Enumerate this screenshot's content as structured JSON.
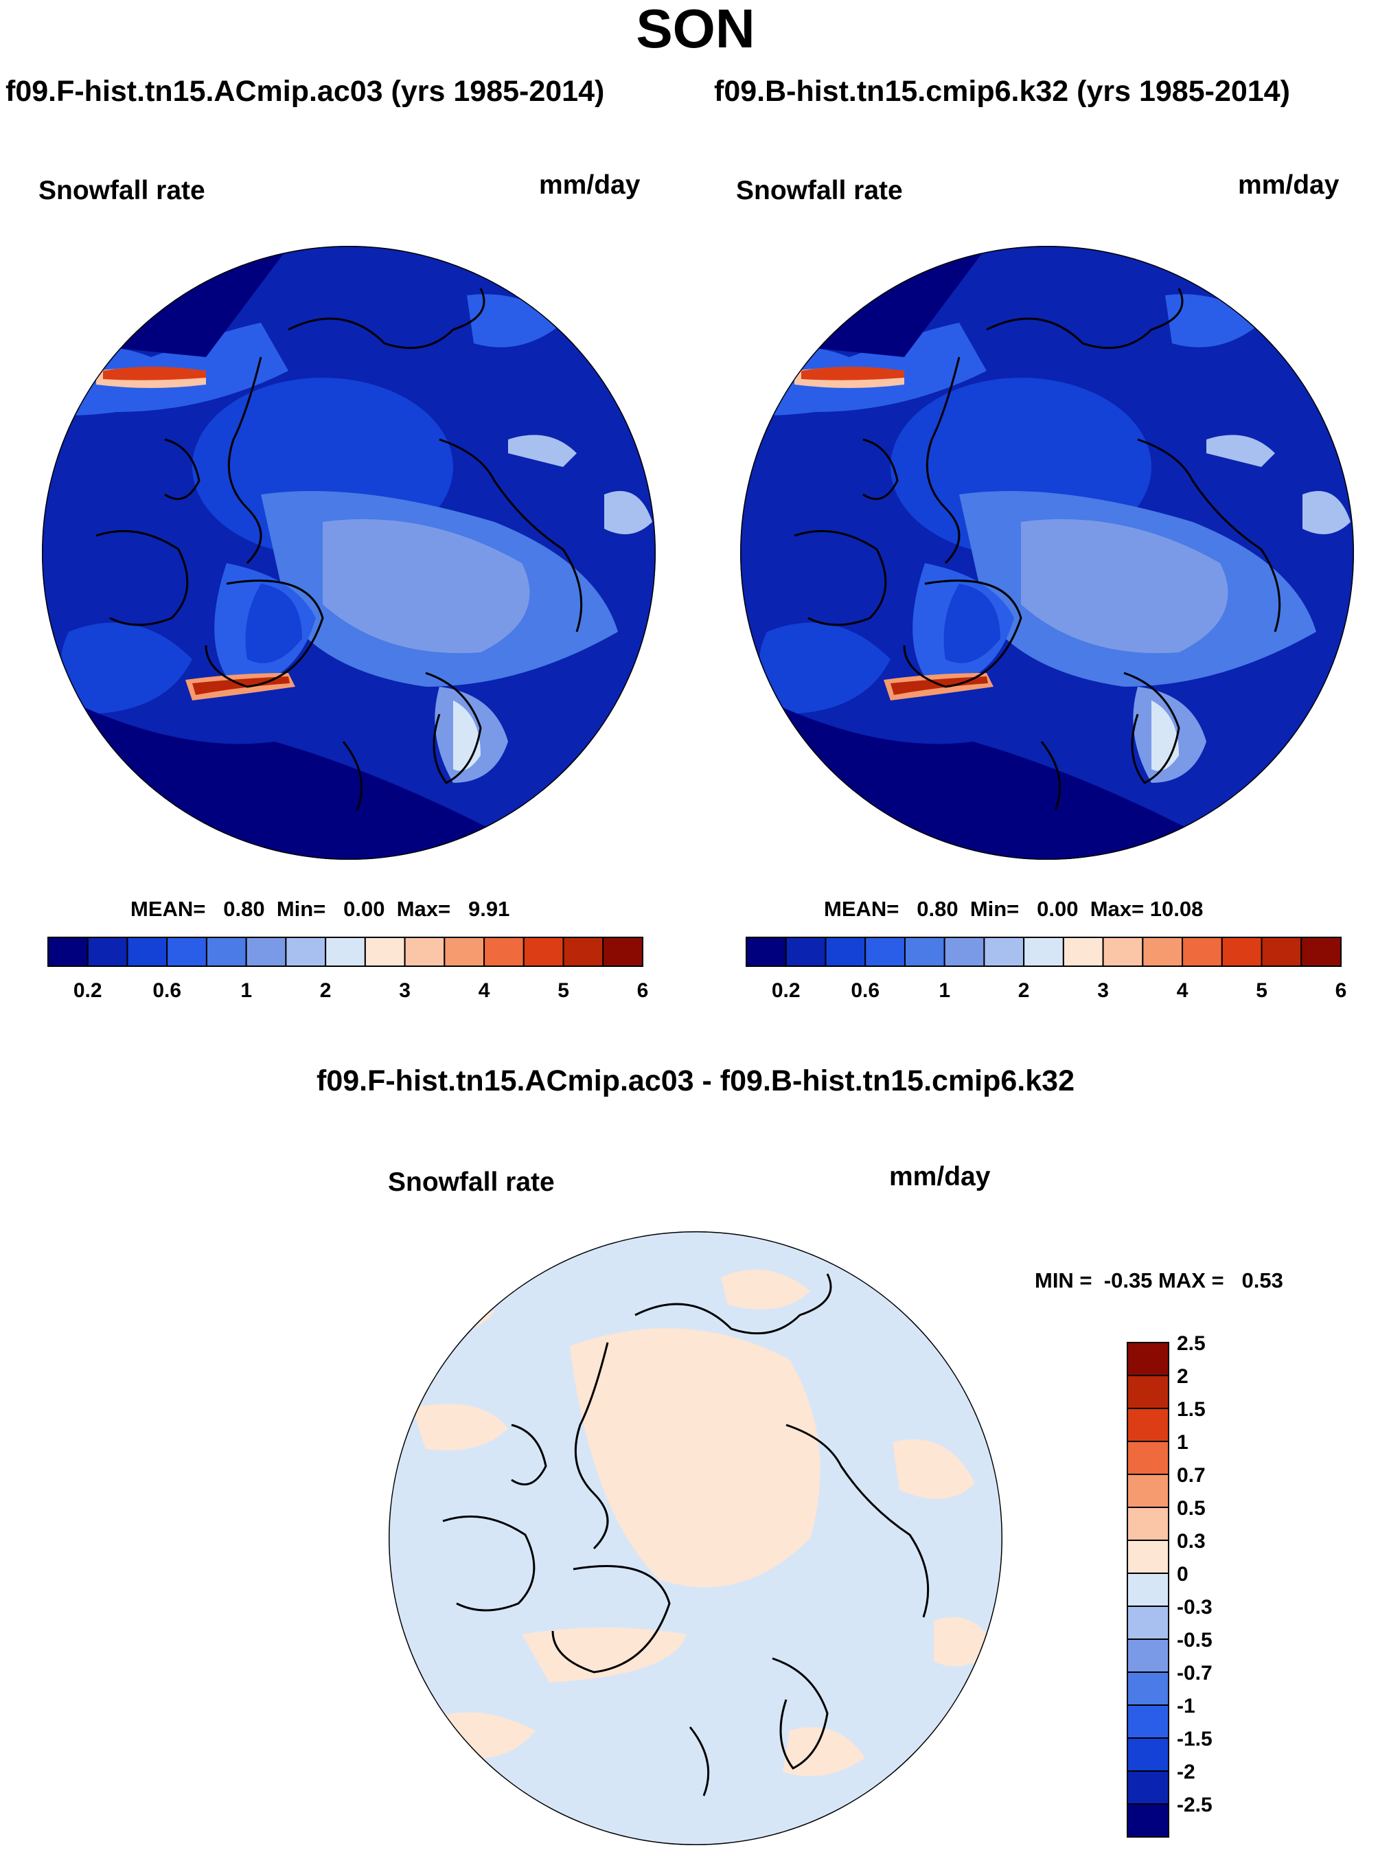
{
  "title": "SON",
  "panels": [
    {
      "case": "f09.F-hist.tn15.ACmip.ac03 (yrs 1985-2014)",
      "variable": "Snowfall rate",
      "units": "mm/day",
      "stats": {
        "mean_label": "MEAN=",
        "mean": "0.80",
        "min_label": "Min=",
        "min": "0.00",
        "max_label": "Max=",
        "max": "9.91"
      }
    },
    {
      "case": "f09.B-hist.tn15.cmip6.k32 (yrs 1985-2014)",
      "variable": "Snowfall rate",
      "units": "mm/day",
      "stats": {
        "mean_label": "MEAN=",
        "mean": "0.80",
        "min_label": "Min=",
        "min": "0.00",
        "max_label": "Max=",
        "max": "10.08"
      }
    }
  ],
  "difference": {
    "title": "f09.F-hist.tn15.ACmip.ac03 - f09.B-hist.tn15.cmip6.k32",
    "variable": "Snowfall rate",
    "units": "mm/day",
    "minmax": "MIN =  -0.35 MAX =   0.53"
  },
  "colorbar_abs": {
    "colors": [
      "#00007f",
      "#0a23b0",
      "#1441d6",
      "#2a5ee8",
      "#4a7be6",
      "#7a9ae8",
      "#a8c0f0",
      "#d7e6f7",
      "#fde6d4",
      "#fbc5a8",
      "#f69b70",
      "#ef6a3c",
      "#dd3d14",
      "#b92708",
      "#8a0a02"
    ],
    "labels": [
      "0.2",
      "0.6",
      "1",
      "2",
      "3",
      "4",
      "5",
      "6"
    ]
  },
  "colorbar_diff": {
    "colors": [
      "#00007f",
      "#0a23b0",
      "#1441d6",
      "#2a5ee8",
      "#4a7be6",
      "#7a9ae8",
      "#a8c0f0",
      "#d7e6f7",
      "#fde6d4",
      "#fbc5a8",
      "#f69b70",
      "#ef6a3c",
      "#dd3d14",
      "#b92708",
      "#8a0a02"
    ],
    "labels": [
      "-2.5",
      "-2",
      "-1.5",
      "-1",
      "-0.7",
      "-0.5",
      "-0.3",
      "0",
      "0.3",
      "0.5",
      "0.7",
      "1",
      "1.5",
      "2",
      "2.5"
    ]
  },
  "map_colors": {
    "ocean_dark": "#00007f",
    "low": "#0a23b0",
    "mid": "#1441d6",
    "mid2": "#2a5ee8",
    "light": "#7a9ae8",
    "lighter": "#a8c0f0",
    "pale": "#d7e6f7",
    "warm": "#fde6d4",
    "hot": "#ef6a3c",
    "hotter": "#b92708"
  }
}
